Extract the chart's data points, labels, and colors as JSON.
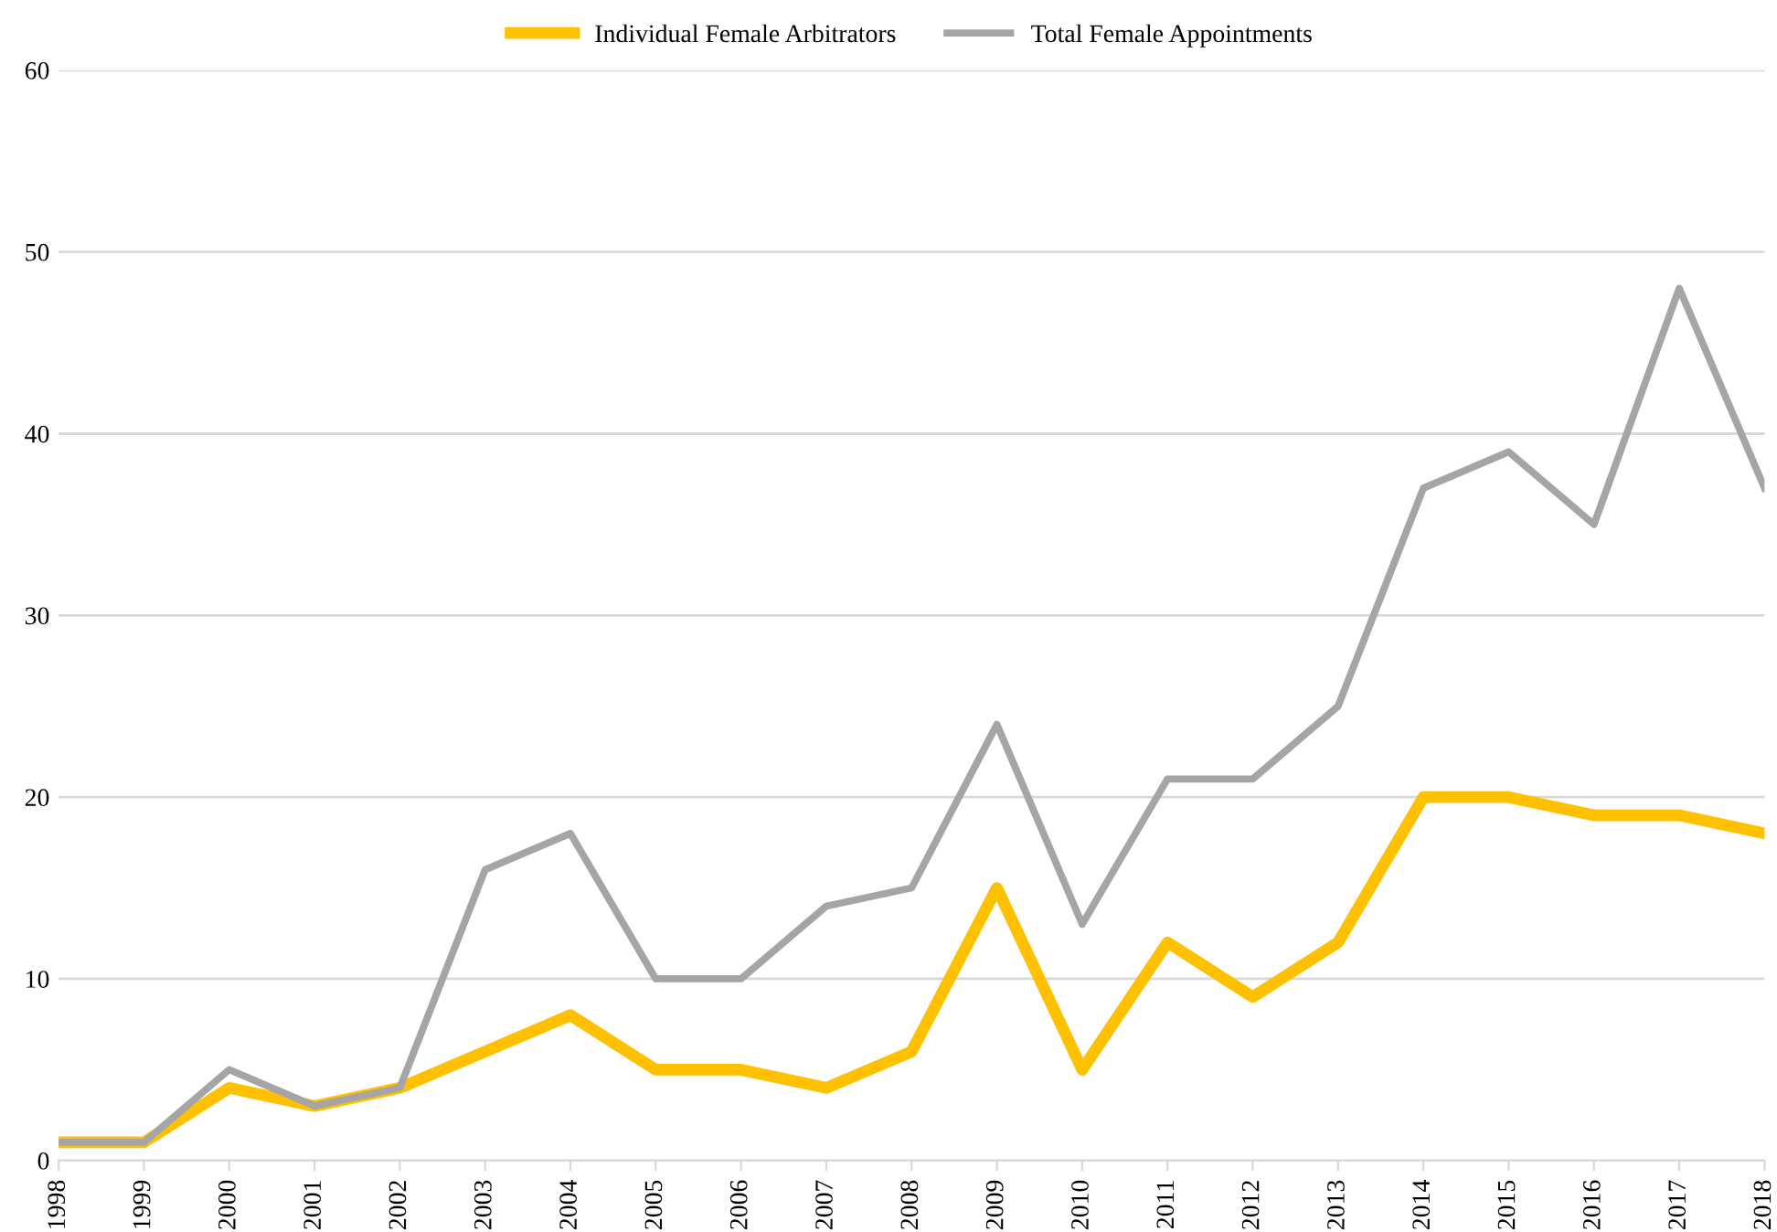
{
  "chart_data": {
    "type": "line",
    "categories": [
      "1998",
      "1999",
      "2000",
      "2001",
      "2002",
      "2003",
      "2004",
      "2005",
      "2006",
      "2007",
      "2008",
      "2009",
      "2010",
      "2011",
      "2012",
      "2013",
      "2014",
      "2015",
      "2016",
      "2017",
      "2018"
    ],
    "series": [
      {
        "name": "Individual Female Arbitrators",
        "color": "#ffc000",
        "values": [
          1,
          1,
          4,
          3,
          4,
          6,
          8,
          5,
          5,
          4,
          6,
          15,
          5,
          12,
          9,
          12,
          20,
          20,
          19,
          19,
          18
        ]
      },
      {
        "name": "Total Female Appointments",
        "color": "#a5a5a5",
        "values": [
          1,
          1,
          5,
          3,
          4,
          16,
          18,
          10,
          10,
          14,
          15,
          24,
          13,
          21,
          21,
          25,
          37,
          39,
          35,
          48,
          37
        ]
      }
    ],
    "ylim": [
      0,
      60
    ],
    "yticks": [
      0,
      10,
      20,
      30,
      40,
      50,
      60
    ],
    "grid": "y",
    "legend": "top",
    "marker": "none",
    "line_style": "solid"
  }
}
